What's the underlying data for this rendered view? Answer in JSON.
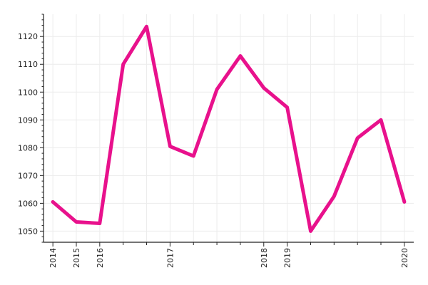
{
  "chart_data": {
    "type": "line",
    "title": "",
    "xlabel": "",
    "ylabel": "",
    "grid": true,
    "legend": "none",
    "x_tick_labels": [
      "2014",
      "2015",
      "2016",
      "2017",
      "2018",
      "2019",
      "2020"
    ],
    "x_tick_positions": [
      0,
      1,
      2,
      5,
      9,
      10,
      15
    ],
    "x_minor_ticks": [
      3,
      4,
      6,
      7,
      8,
      11,
      12,
      13,
      14
    ],
    "xlim": [
      -0.4,
      15.4
    ],
    "ylim": [
      1046,
      1128
    ],
    "y_ticks": [
      1050,
      1060,
      1070,
      1080,
      1090,
      1100,
      1110,
      1120
    ],
    "series": [
      {
        "color": "#e8118c",
        "x": [
          0,
          1,
          2,
          3,
          4,
          5,
          6,
          7,
          8,
          9,
          10,
          11,
          12,
          13,
          14,
          15
        ],
        "values": [
          1060.5,
          1053.3,
          1052.8,
          1110,
          1123.6,
          1080.5,
          1077,
          1101,
          1113,
          1101.5,
          1094.5,
          1050,
          1062.5,
          1083.5,
          1090,
          1060.5
        ]
      }
    ]
  }
}
